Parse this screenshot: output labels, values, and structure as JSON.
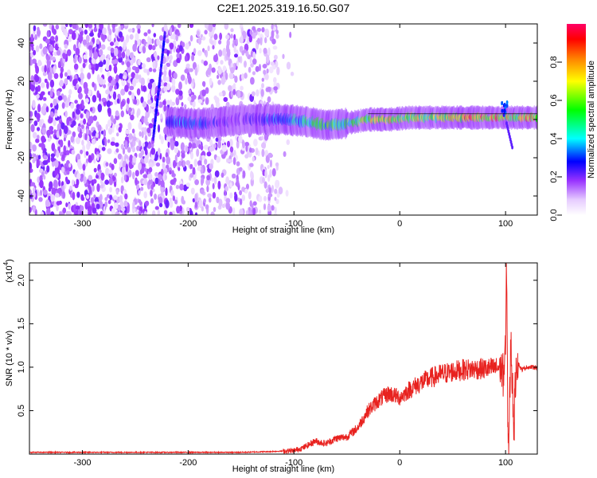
{
  "figure_title": "C2E1.2025.319.16.50.G07",
  "chart_data": [
    {
      "type": "heatmap",
      "title": "C2E1.2025.319.16.50.G07",
      "xlabel": "Height of straight line (km)",
      "ylabel": "Frequency (Hz)",
      "xlim": [
        -350,
        130
      ],
      "ylim": [
        -50,
        50
      ],
      "xticks": [
        -300,
        -200,
        -100,
        0,
        100
      ],
      "yticks": [
        -40,
        -20,
        0,
        20,
        40
      ],
      "xtick_labels": [
        "-300",
        "-200",
        "-100",
        "0",
        "100"
      ],
      "ytick_labels": [
        "-40",
        "-20",
        "0",
        "20",
        "40"
      ],
      "colorbar": {
        "label": "Normalized spectral amplitude",
        "range": [
          0,
          1
        ],
        "ticks": [
          0.0,
          0.2,
          0.4,
          0.6,
          0.8
        ],
        "tick_labels": [
          "0.0",
          "0.2",
          "0.4",
          "0.6",
          "0.8"
        ]
      },
      "features": {
        "noise_region_km": [
          -350,
          -115
        ],
        "signal_ridge_center_hz": 0,
        "signal_ridge_start_km": -225,
        "steep_streak_start": {
          "x": -233,
          "y": -10
        },
        "steep_streak_end": {
          "x": -222,
          "y": 45
        },
        "ridge_points": [
          {
            "x": -220,
            "y": -1,
            "amp": 0.35
          },
          {
            "x": -200,
            "y": -2,
            "amp": 0.4
          },
          {
            "x": -180,
            "y": -2,
            "amp": 0.3
          },
          {
            "x": -150,
            "y": 0,
            "amp": 0.2
          },
          {
            "x": -130,
            "y": 0,
            "amp": 0.3
          },
          {
            "x": -110,
            "y": 0,
            "amp": 0.4
          },
          {
            "x": -90,
            "y": -1,
            "amp": 0.5
          },
          {
            "x": -70,
            "y": -3,
            "amp": 0.6
          },
          {
            "x": -50,
            "y": -2,
            "amp": 0.55
          },
          {
            "x": -30,
            "y": 0,
            "amp": 0.75
          },
          {
            "x": -10,
            "y": 0,
            "amp": 0.8
          },
          {
            "x": 10,
            "y": 1,
            "amp": 0.7
          },
          {
            "x": 30,
            "y": 1,
            "amp": 0.7
          },
          {
            "x": 50,
            "y": 1,
            "amp": 0.8
          },
          {
            "x": 70,
            "y": 1,
            "amp": 0.95
          },
          {
            "x": 90,
            "y": 1,
            "amp": 0.85
          },
          {
            "x": 105,
            "y": 1,
            "amp": 0.8
          },
          {
            "x": 125,
            "y": 1,
            "amp": 0.9
          }
        ]
      }
    },
    {
      "type": "line",
      "xlabel": "Height of straight line (km)",
      "ylabel": "SNR (10 * v/v)",
      "scale_label": "(x10",
      "scale_exponent": "4",
      "xlim": [
        -350,
        130
      ],
      "ylim": [
        0,
        2.2
      ],
      "xticks": [
        -300,
        -200,
        -100,
        0,
        100
      ],
      "yticks": [
        0.5,
        1.0,
        1.5,
        2.0
      ],
      "xtick_labels": [
        "-300",
        "-200",
        "-100",
        "0",
        "100"
      ],
      "ytick_labels": [
        "0.5",
        "1.0",
        "1.5",
        "2.0"
      ],
      "series": [
        {
          "name": "SNR",
          "color": "#e8221f",
          "x": [
            -350,
            -300,
            -250,
            -200,
            -150,
            -120,
            -100,
            -90,
            -80,
            -70,
            -60,
            -50,
            -40,
            -30,
            -20,
            -10,
            0,
            10,
            20,
            30,
            40,
            50,
            60,
            70,
            80,
            90,
            95,
            98,
            100,
            101,
            102,
            103,
            105,
            108,
            110,
            115,
            120,
            130
          ],
          "y": [
            0.02,
            0.02,
            0.02,
            0.02,
            0.02,
            0.03,
            0.04,
            0.08,
            0.15,
            0.12,
            0.18,
            0.2,
            0.3,
            0.5,
            0.62,
            0.7,
            0.65,
            0.75,
            0.82,
            0.88,
            0.92,
            0.95,
            0.97,
            0.98,
            0.98,
            0.99,
            1.0,
            0.9,
            1.2,
            2.2,
            0.5,
            0.05,
            1.3,
            0.3,
            1.1,
            0.97,
            1.0,
            1.0
          ]
        }
      ]
    }
  ]
}
